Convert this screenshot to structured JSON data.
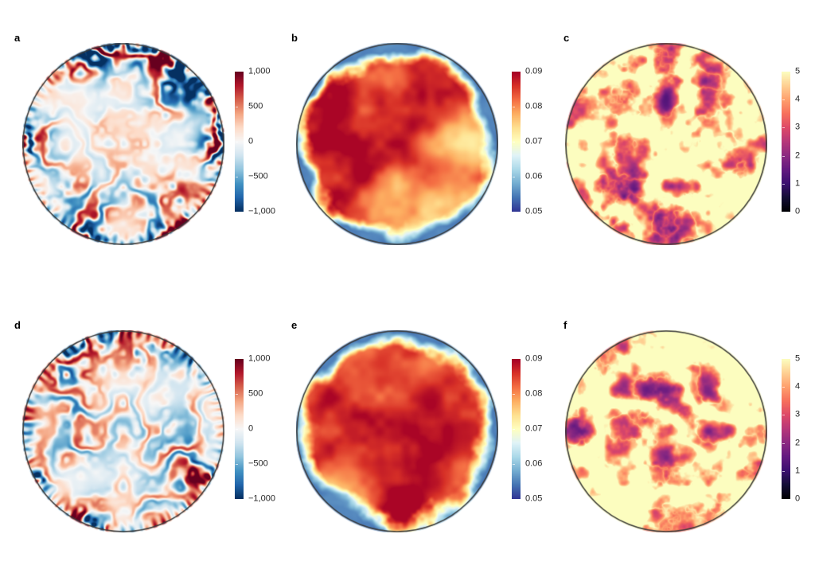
{
  "figure": {
    "background": "#ffffff",
    "panel_letter_color": "#000000",
    "tick_label_color": "#262626",
    "disk_border_color": "#3a3a3a"
  },
  "colormaps": {
    "rdbu_r": [
      "#053061",
      "#2166ac",
      "#4393c3",
      "#92c5de",
      "#d1e5f0",
      "#f7f7f7",
      "#fddbc7",
      "#f4a582",
      "#d6604d",
      "#b2182b",
      "#67001f"
    ],
    "rdylbu_r": [
      "#313695",
      "#4575b4",
      "#74add1",
      "#abd9e9",
      "#e0f3f8",
      "#ffffbf",
      "#fee090",
      "#fdae61",
      "#f46d43",
      "#d73027",
      "#a50026"
    ],
    "magma": [
      "#000004",
      "#140e36",
      "#3b0f70",
      "#641a80",
      "#8c2981",
      "#b73779",
      "#de4968",
      "#f7705c",
      "#fe9f6d",
      "#fecf92",
      "#fcfdbf"
    ]
  },
  "chart_data": [
    {
      "panel_label": "a",
      "type": "heatmap",
      "shape": "circular-disk",
      "pattern": "diverging-filaments",
      "colormap": "rdbu_r",
      "value_range": [
        -1000,
        1000
      ],
      "colorbar_tick_values": [
        1000,
        500,
        0,
        -500,
        -1000
      ],
      "colorbar_tick_labels": [
        "1,000",
        "500",
        "0",
        "−500",
        "−1,000"
      ],
      "description": "Vorticity-like field: fine red/blue filamentary streaks on a near-white disk, strongest near the rim"
    },
    {
      "panel_label": "b",
      "type": "heatmap",
      "shape": "circular-disk",
      "pattern": "warm-interior-cold-rim",
      "colormap": "rdylbu_r",
      "value_range": [
        0.05,
        0.09
      ],
      "colorbar_tick_values": [
        0.09,
        0.08,
        0.07,
        0.06,
        0.05
      ],
      "colorbar_tick_labels": [
        "0.09",
        "0.08",
        "0.07",
        "0.06",
        "0.05"
      ],
      "description": "Temperature-like field: smooth orange/red interior with yellow patches and blue cold fingers intruding from the boundary"
    },
    {
      "panel_label": "c",
      "type": "heatmap",
      "shape": "circular-disk",
      "pattern": "ridged-bright-filaments",
      "colormap": "magma",
      "value_range": [
        0,
        5
      ],
      "colorbar_tick_values": [
        5,
        4,
        3,
        2,
        1,
        0
      ],
      "colorbar_tick_labels": [
        "5",
        "4",
        "3",
        "2",
        "1",
        "0"
      ],
      "description": "Speed-like field: bright cream/orange swirling filaments over a dark purple background"
    },
    {
      "panel_label": "d",
      "type": "heatmap",
      "shape": "circular-disk",
      "pattern": "diverging-filaments",
      "colormap": "rdbu_r",
      "value_range": [
        -1000,
        1000
      ],
      "colorbar_tick_values": [
        1000,
        500,
        0,
        -500,
        -1000
      ],
      "colorbar_tick_labels": [
        "1,000",
        "500",
        "0",
        "−500",
        "−1,000"
      ],
      "description": "Vorticity-like field (second case): red/blue filaments, paler interior, fine radial striations at the rim"
    },
    {
      "panel_label": "e",
      "type": "heatmap",
      "shape": "circular-disk",
      "pattern": "warm-interior-cold-rim",
      "colormap": "rdylbu_r",
      "value_range": [
        0.05,
        0.09
      ],
      "colorbar_tick_values": [
        0.09,
        0.08,
        0.07,
        0.06,
        0.05
      ],
      "colorbar_tick_labels": [
        "0.09",
        "0.08",
        "0.07",
        "0.06",
        "0.05"
      ],
      "description": "Temperature-like field (second case): red/orange interior, deep blue fingers along lower-left boundary"
    },
    {
      "panel_label": "f",
      "type": "heatmap",
      "shape": "circular-disk",
      "pattern": "ridged-bright-filaments",
      "colormap": "magma",
      "value_range": [
        0,
        5
      ],
      "colorbar_tick_values": [
        5,
        4,
        3,
        2,
        1,
        0
      ],
      "colorbar_tick_labels": [
        "5",
        "4",
        "3",
        "2",
        "1",
        "0"
      ],
      "description": "Speed-like field (second case): large bright filament bundles over dark purple background"
    }
  ]
}
